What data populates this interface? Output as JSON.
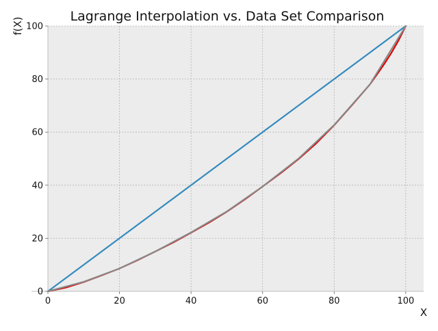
{
  "chart_data": {
    "type": "line",
    "title": "Lagrange Interpolation vs. Data Set Comparison",
    "xlabel": "X",
    "ylabel": "f(X)",
    "xlim": [
      0,
      105
    ],
    "ylim": [
      0,
      100
    ],
    "x_ticks": [
      0,
      20,
      40,
      60,
      80,
      100
    ],
    "y_ticks": [
      0,
      20,
      40,
      60,
      80,
      100
    ],
    "grid": true,
    "legend": "none",
    "background_color": "#ececec",
    "series": [
      {
        "color": "#348abd",
        "x": [
          0,
          100
        ],
        "y": [
          0,
          100
        ]
      },
      {
        "color": "#e00000",
        "x": [
          0,
          5,
          10,
          15,
          20,
          25,
          30,
          35,
          40,
          45,
          50,
          55,
          60,
          65,
          70,
          75,
          80,
          85,
          90,
          92,
          94,
          96,
          98,
          100
        ],
        "y": [
          0,
          1.4,
          3.5,
          6.0,
          8.6,
          11.7,
          15.0,
          18.4,
          22.1,
          25.9,
          30.0,
          34.6,
          39.5,
          44.5,
          49.8,
          55.8,
          62.6,
          70.2,
          78.0,
          81.8,
          85.7,
          89.9,
          94.6,
          100
        ]
      },
      {
        "color": "#888888",
        "x": [
          0,
          10,
          20,
          30,
          40,
          50,
          60,
          70,
          80,
          90,
          100
        ],
        "y": [
          0,
          3.6,
          8.6,
          15.0,
          22.2,
          30.1,
          39.5,
          50.0,
          62.7,
          78.0,
          100
        ]
      }
    ]
  }
}
